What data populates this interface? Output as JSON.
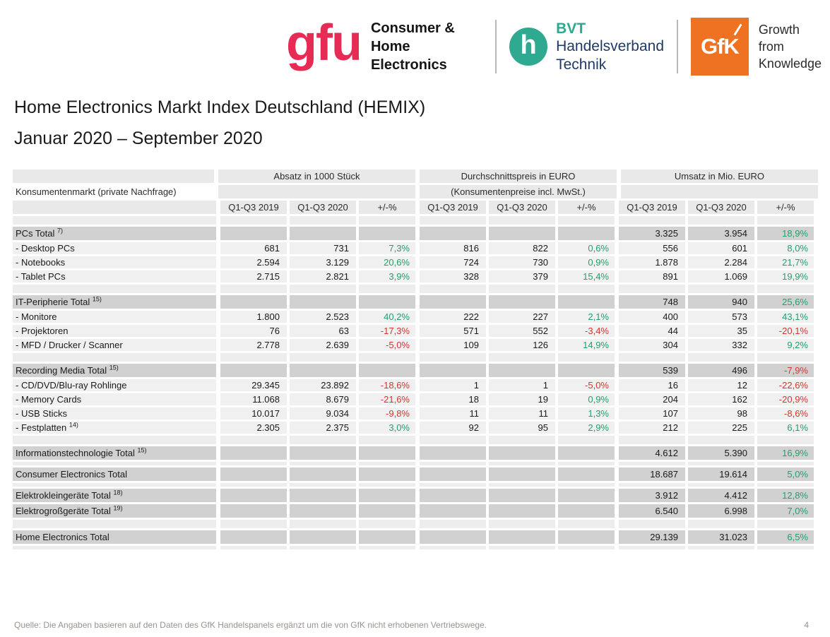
{
  "header": {
    "gfu": {
      "mark": "gfu",
      "line1": "Consumer &",
      "line2": "Home Electronics",
      "brand_color": "#e62b54"
    },
    "bvt": {
      "monogram": "h",
      "abbr": "BVT",
      "line1": "Handelsverband",
      "line2": "Technik",
      "teal": "#2fa98f",
      "navy": "#1e3a66"
    },
    "gfk": {
      "mark": "GfK",
      "line1": "Growth",
      "line2": "from",
      "line3": "Knowledge",
      "orange": "#ef7222"
    }
  },
  "title": "Home Electronics Markt Index Deutschland (HEMIX)",
  "subtitle": "Januar 2020 – September 2020",
  "table": {
    "row_header": "Konsumentenmarkt (private Nachfrage)",
    "groups": [
      {
        "title": "Absatz in 1000 Stück",
        "subtitle": ""
      },
      {
        "title": "Durchschnittspreis in EURO",
        "subtitle": "(Konsumentenpreise incl. MwSt.)"
      },
      {
        "title": "Umsatz in Mio. EURO",
        "subtitle": ""
      }
    ],
    "col_headers": [
      "Q1-Q3 2019",
      "Q1-Q3 2020",
      "+/-%"
    ],
    "colors": {
      "positive": "#22a06b",
      "negative": "#cf3730",
      "total_row_bg": "#d1d1d1",
      "data_row_bg": "#f0f0f0"
    },
    "rows": [
      {
        "type": "spacer"
      },
      {
        "type": "total",
        "label": "PCs Total",
        "sup": "7)",
        "cells": [
          "",
          "",
          "",
          "",
          "",
          "",
          "3.325",
          "3.954",
          "18,9%"
        ]
      },
      {
        "type": "data",
        "label": "- Desktop PCs",
        "sup": "",
        "cells": [
          "681",
          "731",
          "7,3%",
          "816",
          "822",
          "0,6%",
          "556",
          "601",
          "8,0%"
        ]
      },
      {
        "type": "data",
        "label": "- Notebooks",
        "sup": "",
        "cells": [
          "2.594",
          "3.129",
          "20,6%",
          "724",
          "730",
          "0,9%",
          "1.878",
          "2.284",
          "21,7%"
        ]
      },
      {
        "type": "data",
        "label": "- Tablet PCs",
        "sup": "",
        "cells": [
          "2.715",
          "2.821",
          "3,9%",
          "328",
          "379",
          "15,4%",
          "891",
          "1.069",
          "19,9%"
        ]
      },
      {
        "type": "spacer"
      },
      {
        "type": "total",
        "label": "IT-Peripherie Total",
        "sup": "15)",
        "cells": [
          "",
          "",
          "",
          "",
          "",
          "",
          "748",
          "940",
          "25,6%"
        ]
      },
      {
        "type": "data",
        "label": "- Monitore",
        "sup": "",
        "cells": [
          "1.800",
          "2.523",
          "40,2%",
          "222",
          "227",
          "2,1%",
          "400",
          "573",
          "43,1%"
        ]
      },
      {
        "type": "data",
        "label": "- Projektoren",
        "sup": "",
        "cells": [
          "76",
          "63",
          "-17,3%",
          "571",
          "552",
          "-3,4%",
          "44",
          "35",
          "-20,1%"
        ]
      },
      {
        "type": "data",
        "label": "- MFD / Drucker / Scanner",
        "sup": "",
        "cells": [
          "2.778",
          "2.639",
          "-5,0%",
          "109",
          "126",
          "14,9%",
          "304",
          "332",
          "9,2%"
        ]
      },
      {
        "type": "spacer"
      },
      {
        "type": "total",
        "label": "Recording Media Total",
        "sup": "15)",
        "cells": [
          "",
          "",
          "",
          "",
          "",
          "",
          "539",
          "496",
          "-7,9%"
        ]
      },
      {
        "type": "data",
        "label": "- CD/DVD/Blu-ray Rohlinge",
        "sup": "",
        "cells": [
          "29.345",
          "23.892",
          "-18,6%",
          "1",
          "1",
          "-5,0%",
          "16",
          "12",
          "-22,6%"
        ]
      },
      {
        "type": "data",
        "label": "- Memory Cards",
        "sup": "",
        "cells": [
          "11.068",
          "8.679",
          "-21,6%",
          "18",
          "19",
          "0,9%",
          "204",
          "162",
          "-20,9%"
        ]
      },
      {
        "type": "data",
        "label": "- USB Sticks",
        "sup": "",
        "cells": [
          "10.017",
          "9.034",
          "-9,8%",
          "11",
          "11",
          "1,3%",
          "107",
          "98",
          "-8,6%"
        ]
      },
      {
        "type": "data",
        "label": "- Festplatten",
        "sup": "14)",
        "cells": [
          "2.305",
          "2.375",
          "3,0%",
          "92",
          "95",
          "2,9%",
          "212",
          "225",
          "6,1%"
        ]
      },
      {
        "type": "spacer"
      },
      {
        "type": "total",
        "label": "Informationstechnologie Total",
        "sup": "15)",
        "cells": [
          "",
          "",
          "",
          "",
          "",
          "",
          "4.612",
          "5.390",
          "16,9%"
        ]
      },
      {
        "type": "spacer-sm"
      },
      {
        "type": "total",
        "label": "Consumer Electronics Total",
        "sup": "",
        "cells": [
          "",
          "",
          "",
          "",
          "",
          "",
          "18.687",
          "19.614",
          "5,0%"
        ]
      },
      {
        "type": "spacer-sm"
      },
      {
        "type": "total",
        "label": "Elektrokleingeräte Total",
        "sup": "18)",
        "cells": [
          "",
          "",
          "",
          "",
          "",
          "",
          "3.912",
          "4.412",
          "12,8%"
        ]
      },
      {
        "type": "total",
        "label": "Elektrogroßgeräte Total",
        "sup": "19)",
        "cells": [
          "",
          "",
          "",
          "",
          "",
          "",
          "6.540",
          "6.998",
          "7,0%"
        ]
      },
      {
        "type": "spacer"
      },
      {
        "type": "total",
        "label": "Home Electronics Total",
        "sup": "",
        "cells": [
          "",
          "",
          "",
          "",
          "",
          "",
          "29.139",
          "31.023",
          "6,5%"
        ]
      },
      {
        "type": "spacer-sm"
      }
    ]
  },
  "footer": {
    "source": "Quelle: Die Angaben basieren auf den Daten des GfK Handelspanels ergänzt um die von GfK nicht erhobenen Vertriebswege.",
    "page": "4"
  }
}
